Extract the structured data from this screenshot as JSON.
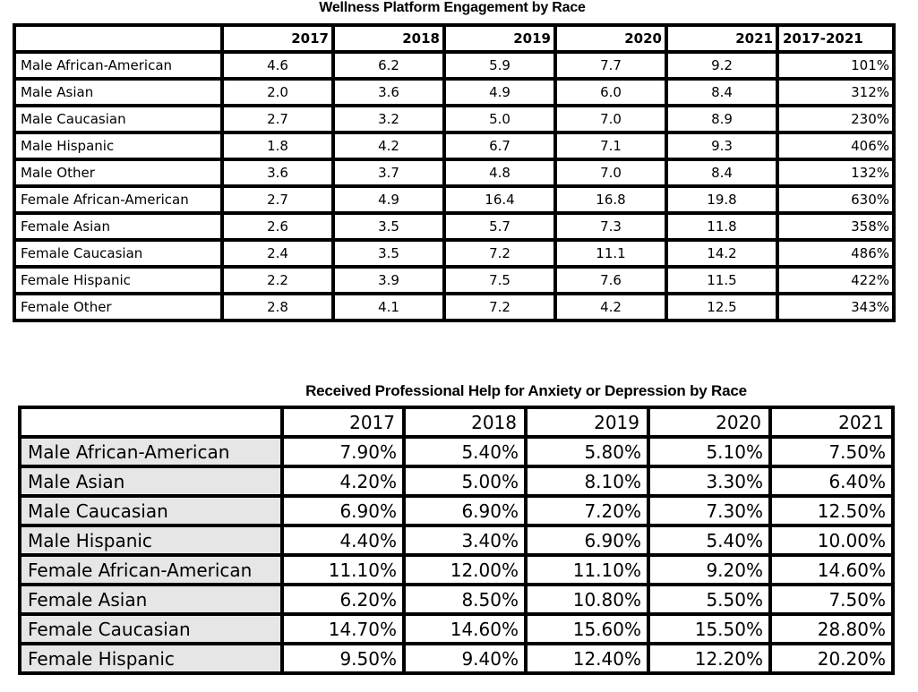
{
  "colors": {
    "border": "#000000",
    "text": "#000000",
    "background": "#ffffff",
    "table2_label_fill": "#e7e6e6"
  },
  "chart_data": [
    {
      "type": "table",
      "title": "Wellness Platform Engagement by Race",
      "columns": [
        "",
        "2017",
        "2018",
        "2019",
        "2020",
        "2021",
        "2017-2021"
      ],
      "rows": [
        [
          "Male African-American",
          "4.6",
          "6.2",
          "5.9",
          "7.7",
          "9.2",
          "101%"
        ],
        [
          "Male Asian",
          "2.0",
          "3.6",
          "4.9",
          "6.0",
          "8.4",
          "312%"
        ],
        [
          "Male Caucasian",
          "2.7",
          "3.2",
          "5.0",
          "7.0",
          "8.9",
          "230%"
        ],
        [
          "Male Hispanic",
          "1.8",
          "4.2",
          "6.7",
          "7.1",
          "9.3",
          "406%"
        ],
        [
          "Male Other",
          "3.6",
          "3.7",
          "4.8",
          "7.0",
          "8.4",
          "132%"
        ],
        [
          "Female African-American",
          "2.7",
          "4.9",
          "16.4",
          "16.8",
          "19.8",
          "630%"
        ],
        [
          "Female Asian",
          "2.6",
          "3.5",
          "5.7",
          "7.3",
          "11.8",
          "358%"
        ],
        [
          "Female Caucasian",
          "2.4",
          "3.5",
          "7.2",
          "11.1",
          "14.2",
          "486%"
        ],
        [
          "Female Hispanic",
          "2.2",
          "3.9",
          "7.5",
          "7.6",
          "11.5",
          "422%"
        ],
        [
          "Female Other",
          "2.8",
          "4.1",
          "7.2",
          "4.2",
          "12.5",
          "343%"
        ]
      ]
    },
    {
      "type": "table",
      "title": "Received Professional Help for Anxiety or Depression by Race",
      "columns": [
        "",
        "2017",
        "2018",
        "2019",
        "2020",
        "2021"
      ],
      "rows": [
        [
          "Male African-American",
          "7.90%",
          "5.40%",
          "5.80%",
          "5.10%",
          "7.50%"
        ],
        [
          "Male Asian",
          "4.20%",
          "5.00%",
          "8.10%",
          "3.30%",
          "6.40%"
        ],
        [
          "Male Caucasian",
          "6.90%",
          "6.90%",
          "7.20%",
          "7.30%",
          "12.50%"
        ],
        [
          "Male Hispanic",
          "4.40%",
          "3.40%",
          "6.90%",
          "5.40%",
          "10.00%"
        ],
        [
          "Female African-American",
          "11.10%",
          "12.00%",
          "11.10%",
          "9.20%",
          "14.60%"
        ],
        [
          "Female Asian",
          "6.20%",
          "8.50%",
          "10.80%",
          "5.50%",
          "7.50%"
        ],
        [
          "Female Caucasian",
          "14.70%",
          "14.60%",
          "15.60%",
          "15.50%",
          "28.80%"
        ],
        [
          "Female Hispanic",
          "9.50%",
          "9.40%",
          "12.40%",
          "12.20%",
          "20.20%"
        ]
      ]
    }
  ]
}
